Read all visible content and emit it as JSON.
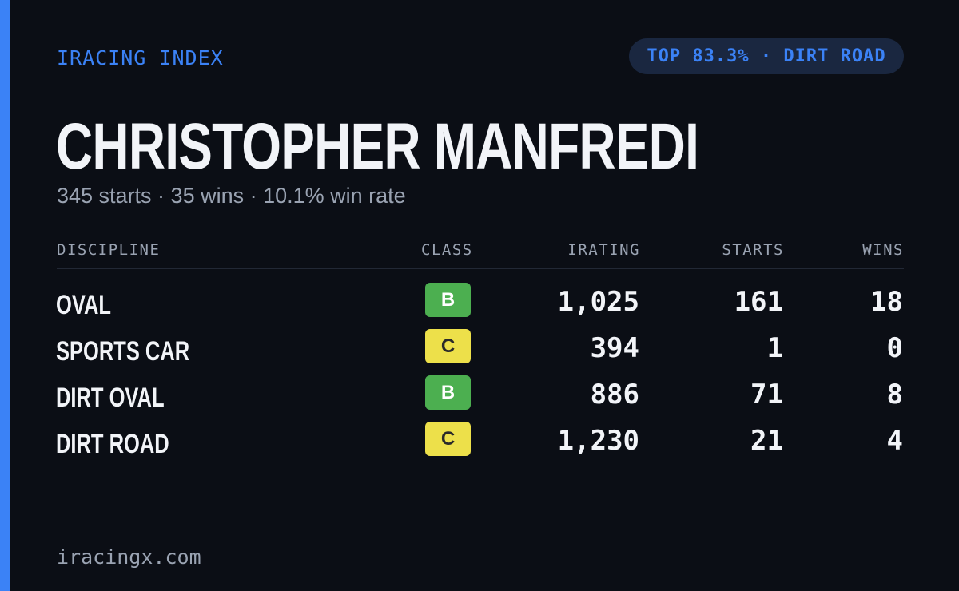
{
  "brand": "IRACING INDEX",
  "rank_pill": "TOP 83.3% · DIRT ROAD",
  "driver": {
    "name": "CHRISTOPHER MANFREDI",
    "summary": "345 starts · 35 wins · 10.1% win rate"
  },
  "table": {
    "headers": {
      "discipline": "DISCIPLINE",
      "class": "CLASS",
      "irating": "IRATING",
      "starts": "STARTS",
      "wins": "WINS"
    },
    "rows": [
      {
        "discipline": "OVAL",
        "class": "B",
        "irating": "1,025",
        "starts": "161",
        "wins": "18"
      },
      {
        "discipline": "SPORTS CAR",
        "class": "C",
        "irating": "394",
        "starts": "1",
        "wins": "0"
      },
      {
        "discipline": "DIRT OVAL",
        "class": "B",
        "irating": "886",
        "starts": "71",
        "wins": "8"
      },
      {
        "discipline": "DIRT ROAD",
        "class": "C",
        "irating": "1,230",
        "starts": "21",
        "wins": "4"
      }
    ]
  },
  "class_colors": {
    "B": {
      "bg": "#4caf50",
      "fg": "#ffffff"
    },
    "C": {
      "bg": "#ede04a",
      "fg": "#2a2a2a"
    }
  },
  "colors": {
    "accent": "#3b82f6",
    "background": "#0b0e15"
  },
  "footer": "iracingx.com"
}
